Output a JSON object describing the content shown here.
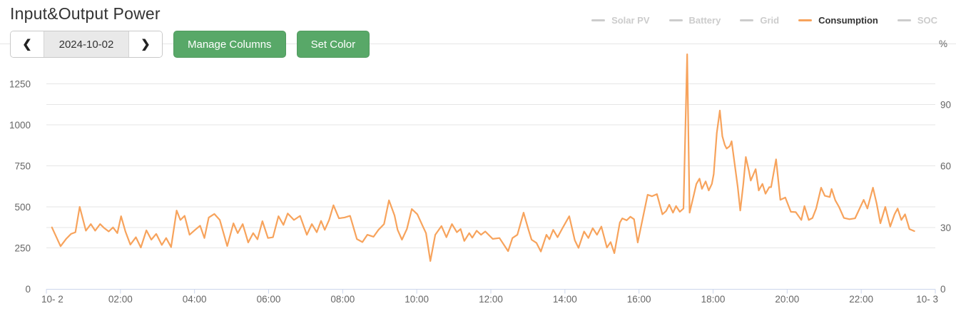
{
  "header": {
    "title": "Input&Output Power"
  },
  "toolbar": {
    "prev_label": "❮",
    "next_label": "❯",
    "date_value": "2024-10-02",
    "manage_columns_label": "Manage Columns",
    "set_color_label": "Set Color",
    "button_color": "#58a868"
  },
  "legend": {
    "items": [
      {
        "label": "Solar PV",
        "active": false,
        "color": "#cccccc"
      },
      {
        "label": "Battery",
        "active": false,
        "color": "#cccccc"
      },
      {
        "label": "Grid",
        "active": false,
        "color": "#cccccc"
      },
      {
        "label": "Consumption",
        "active": true,
        "color": "#f7a35c"
      },
      {
        "label": "SOC",
        "active": false,
        "color": "#cccccc"
      }
    ],
    "active_text_color": "#333333",
    "inactive_text_color": "#cccccc"
  },
  "chart_data": {
    "type": "line",
    "title": "Input&Output Power",
    "grid": "horizontal",
    "colors": {
      "grid_line": "#e6e6e6",
      "axis_line": "#ccd6eb",
      "axis_label": "#666666"
    },
    "x_axis": {
      "max_minutes": 1440,
      "tick_interval_minutes": 120,
      "tick_labels": [
        "10- 2",
        "02:00",
        "04:00",
        "06:00",
        "08:00",
        "10:00",
        "12:00",
        "14:00",
        "16:00",
        "18:00",
        "20:00",
        "22:00",
        "10- 3"
      ]
    },
    "y_left": {
      "ticks": [
        0,
        250,
        500,
        750,
        1000,
        1250
      ],
      "max": 1500
    },
    "y_right": {
      "ticks": [
        0,
        30,
        60,
        90
      ],
      "max": 120,
      "title": "%"
    },
    "series": [
      {
        "name": "Solar PV",
        "visible": false,
        "points": []
      },
      {
        "name": "Battery",
        "visible": false,
        "points": []
      },
      {
        "name": "Grid",
        "visible": false,
        "points": []
      },
      {
        "name": "Consumption",
        "visible": true,
        "color": "#f7a35c",
        "points": [
          [
            9,
            375
          ],
          [
            23,
            260
          ],
          [
            32,
            305
          ],
          [
            40,
            335
          ],
          [
            47,
            345
          ],
          [
            54,
            500
          ],
          [
            64,
            355
          ],
          [
            72,
            395
          ],
          [
            79,
            355
          ],
          [
            87,
            395
          ],
          [
            94,
            370
          ],
          [
            101,
            350
          ],
          [
            108,
            375
          ],
          [
            115,
            340
          ],
          [
            121,
            443
          ],
          [
            128,
            350
          ],
          [
            136,
            270
          ],
          [
            145,
            315
          ],
          [
            153,
            252
          ],
          [
            162,
            357
          ],
          [
            170,
            300
          ],
          [
            178,
            335
          ],
          [
            187,
            268
          ],
          [
            194,
            310
          ],
          [
            202,
            255
          ],
          [
            211,
            478
          ],
          [
            217,
            420
          ],
          [
            224,
            445
          ],
          [
            232,
            330
          ],
          [
            241,
            360
          ],
          [
            249,
            385
          ],
          [
            256,
            310
          ],
          [
            263,
            435
          ],
          [
            272,
            457
          ],
          [
            281,
            420
          ],
          [
            293,
            261
          ],
          [
            303,
            400
          ],
          [
            310,
            340
          ],
          [
            318,
            395
          ],
          [
            327,
            283
          ],
          [
            335,
            340
          ],
          [
            342,
            302
          ],
          [
            350,
            413
          ],
          [
            359,
            310
          ],
          [
            367,
            315
          ],
          [
            376,
            443
          ],
          [
            384,
            390
          ],
          [
            391,
            460
          ],
          [
            401,
            420
          ],
          [
            411,
            445
          ],
          [
            422,
            330
          ],
          [
            430,
            395
          ],
          [
            438,
            345
          ],
          [
            445,
            415
          ],
          [
            451,
            360
          ],
          [
            458,
            420
          ],
          [
            465,
            510
          ],
          [
            474,
            430
          ],
          [
            483,
            435
          ],
          [
            492,
            445
          ],
          [
            503,
            304
          ],
          [
            512,
            285
          ],
          [
            520,
            330
          ],
          [
            530,
            318
          ],
          [
            538,
            360
          ],
          [
            547,
            395
          ],
          [
            555,
            540
          ],
          [
            564,
            448
          ],
          [
            569,
            360
          ],
          [
            576,
            300
          ],
          [
            584,
            365
          ],
          [
            592,
            487
          ],
          [
            601,
            455
          ],
          [
            610,
            380
          ],
          [
            615,
            340
          ],
          [
            622,
            170
          ],
          [
            630,
            330
          ],
          [
            640,
            383
          ],
          [
            648,
            315
          ],
          [
            657,
            395
          ],
          [
            665,
            345
          ],
          [
            671,
            365
          ],
          [
            677,
            292
          ],
          [
            685,
            340
          ],
          [
            690,
            312
          ],
          [
            697,
            355
          ],
          [
            704,
            330
          ],
          [
            711,
            350
          ],
          [
            723,
            305
          ],
          [
            734,
            310
          ],
          [
            748,
            230
          ],
          [
            755,
            310
          ],
          [
            763,
            330
          ],
          [
            773,
            465
          ],
          [
            781,
            360
          ],
          [
            786,
            300
          ],
          [
            794,
            280
          ],
          [
            801,
            228
          ],
          [
            810,
            330
          ],
          [
            815,
            302
          ],
          [
            821,
            360
          ],
          [
            828,
            315
          ],
          [
            836,
            370
          ],
          [
            847,
            443
          ],
          [
            856,
            296
          ],
          [
            862,
            250
          ],
          [
            871,
            350
          ],
          [
            878,
            310
          ],
          [
            885,
            370
          ],
          [
            892,
            330
          ],
          [
            899,
            380
          ],
          [
            908,
            252
          ],
          [
            914,
            285
          ],
          [
            920,
            218
          ],
          [
            929,
            404
          ],
          [
            933,
            430
          ],
          [
            940,
            418
          ],
          [
            946,
            440
          ],
          [
            952,
            425
          ],
          [
            958,
            283
          ],
          [
            966,
            430
          ],
          [
            974,
            574
          ],
          [
            981,
            565
          ],
          [
            989,
            578
          ],
          [
            998,
            455
          ],
          [
            1004,
            475
          ],
          [
            1009,
            513
          ],
          [
            1015,
            465
          ],
          [
            1020,
            505
          ],
          [
            1026,
            470
          ],
          [
            1032,
            490
          ],
          [
            1038,
            1430
          ],
          [
            1042,
            465
          ],
          [
            1048,
            560
          ],
          [
            1053,
            640
          ],
          [
            1058,
            672
          ],
          [
            1062,
            610
          ],
          [
            1068,
            655
          ],
          [
            1073,
            600
          ],
          [
            1078,
            640
          ],
          [
            1081,
            700
          ],
          [
            1086,
            950
          ],
          [
            1091,
            1087
          ],
          [
            1095,
            930
          ],
          [
            1099,
            878
          ],
          [
            1102,
            855
          ],
          [
            1107,
            870
          ],
          [
            1110,
            900
          ],
          [
            1115,
            760
          ],
          [
            1120,
            620
          ],
          [
            1124,
            478
          ],
          [
            1129,
            640
          ],
          [
            1133,
            804
          ],
          [
            1138,
            720
          ],
          [
            1141,
            660
          ],
          [
            1149,
            730
          ],
          [
            1154,
            600
          ],
          [
            1160,
            640
          ],
          [
            1165,
            580
          ],
          [
            1171,
            620
          ],
          [
            1174,
            620
          ],
          [
            1182,
            790
          ],
          [
            1189,
            543
          ],
          [
            1197,
            557
          ],
          [
            1206,
            470
          ],
          [
            1214,
            468
          ],
          [
            1223,
            420
          ],
          [
            1228,
            505
          ],
          [
            1235,
            420
          ],
          [
            1241,
            432
          ],
          [
            1247,
            490
          ],
          [
            1255,
            617
          ],
          [
            1261,
            568
          ],
          [
            1269,
            560
          ],
          [
            1272,
            609
          ],
          [
            1278,
            540
          ],
          [
            1284,
            500
          ],
          [
            1292,
            432
          ],
          [
            1301,
            425
          ],
          [
            1310,
            430
          ],
          [
            1324,
            543
          ],
          [
            1330,
            490
          ],
          [
            1339,
            617
          ],
          [
            1345,
            520
          ],
          [
            1351,
            400
          ],
          [
            1359,
            500
          ],
          [
            1367,
            380
          ],
          [
            1374,
            455
          ],
          [
            1379,
            490
          ],
          [
            1385,
            420
          ],
          [
            1391,
            455
          ],
          [
            1398,
            365
          ],
          [
            1406,
            352
          ]
        ]
      },
      {
        "name": "SOC",
        "visible": false,
        "points": []
      }
    ]
  }
}
